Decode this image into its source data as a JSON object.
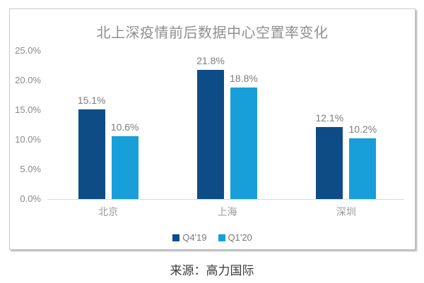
{
  "page": {
    "source_note": "来源：高力国际"
  },
  "chart_data": {
    "type": "bar",
    "title": "北上深疫情前后数据中心空置率变化",
    "categories": [
      "北京",
      "上海",
      "深圳"
    ],
    "series": [
      {
        "name": "Q4'19",
        "color": "#0d4c86",
        "values": [
          15.1,
          21.8,
          12.1
        ]
      },
      {
        "name": "Q1'20",
        "color": "#189ed9",
        "values": [
          10.6,
          18.8,
          10.2
        ]
      }
    ],
    "data_labels": [
      [
        "15.1%",
        "21.8%",
        "12.1%"
      ],
      [
        "10.6%",
        "18.8%",
        "10.2%"
      ]
    ],
    "y_ticks": [
      "25.0%",
      "20.0%",
      "15.0%",
      "10.0%",
      "5.0%",
      "0.0%"
    ],
    "y_tick_values": [
      25,
      20,
      15,
      10,
      5,
      0
    ],
    "ylim": [
      0,
      25
    ],
    "xlabel": "",
    "ylabel": "",
    "grid": false,
    "legend_position": "bottom"
  }
}
